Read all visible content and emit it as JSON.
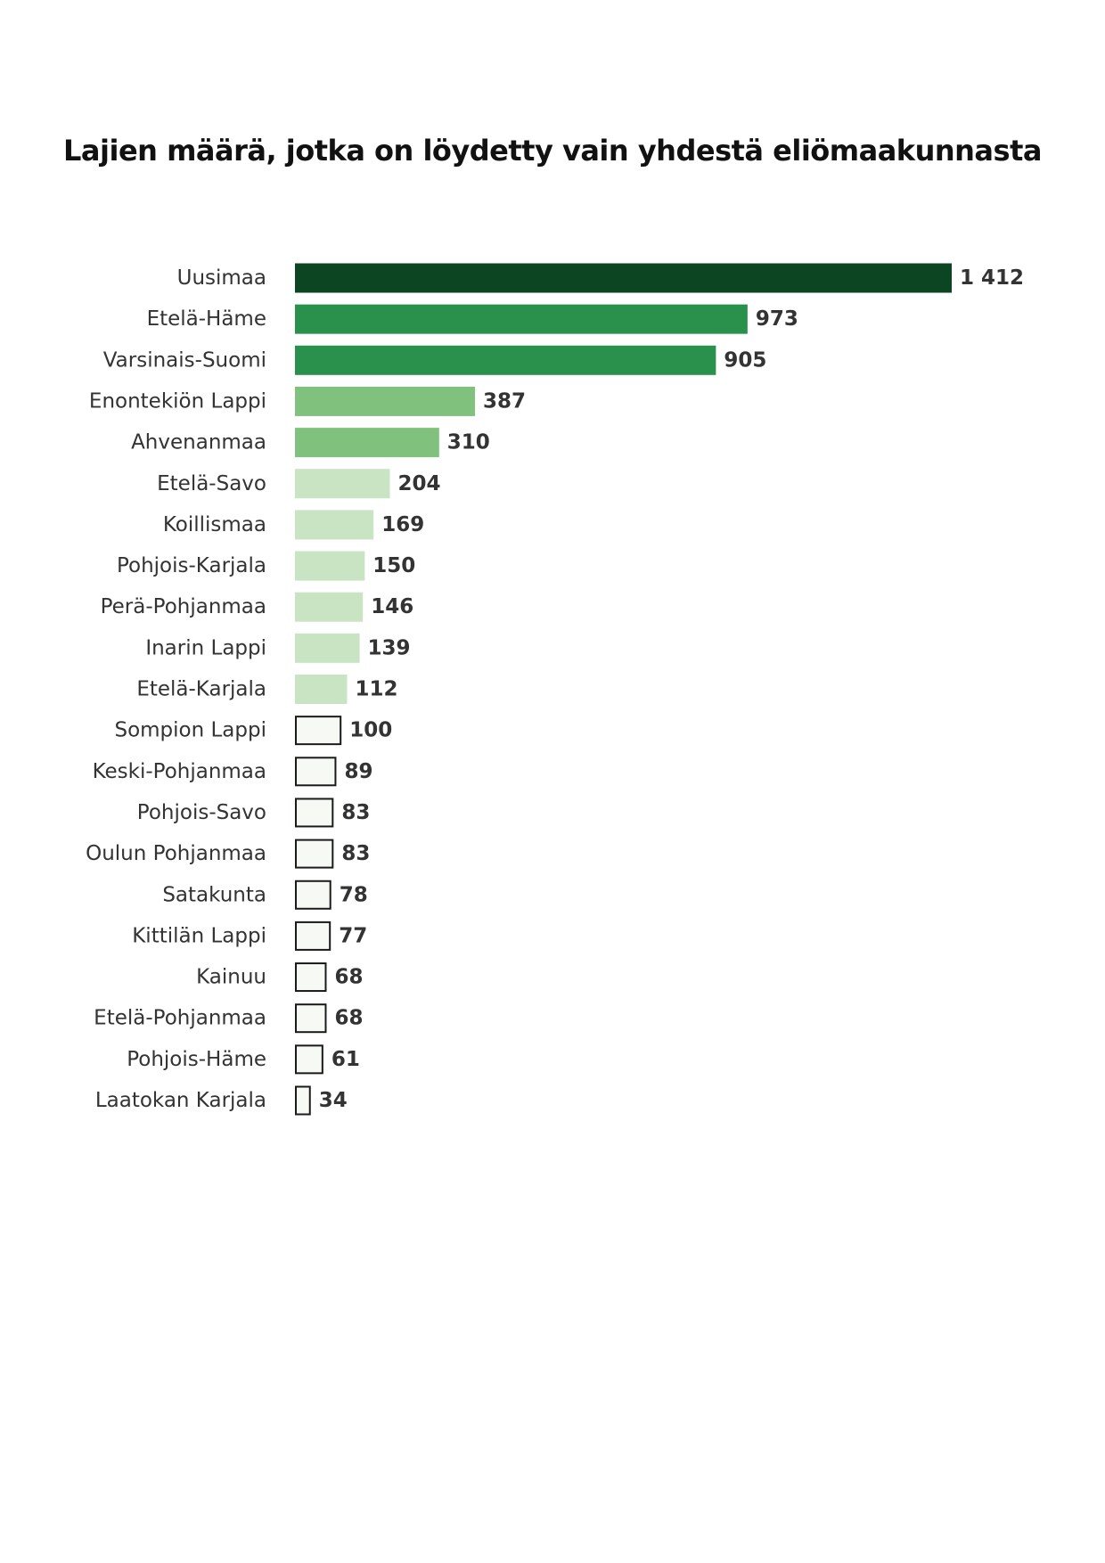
{
  "chart_data": {
    "type": "bar",
    "orientation": "horizontal",
    "title": "Lajien määrä, jotka on löydetty vain yhdestä eliömaakunnasta",
    "categories": [
      "Uusimaa",
      "Etelä-Häme",
      "Varsinais-Suomi",
      "Enontekiön Lappi",
      "Ahvenanmaa",
      "Etelä-Savo",
      "Koillismaa",
      "Pohjois-Karjala",
      "Perä-Pohjanmaa",
      "Inarin Lappi",
      "Etelä-Karjala",
      "Sompion Lappi",
      "Keski-Pohjanmaa",
      "Pohjois-Savo",
      "Oulun Pohjanmaa",
      "Satakunta",
      "Kittilän Lappi",
      "Kainuu",
      "Etelä-Pohjanmaa",
      "Pohjois-Häme",
      "Laatokan Karjala"
    ],
    "values": [
      1412,
      973,
      905,
      387,
      310,
      204,
      169,
      150,
      146,
      139,
      112,
      100,
      89,
      83,
      83,
      78,
      77,
      68,
      68,
      61,
      34
    ],
    "value_labels": [
      "1 412",
      "973",
      "905",
      "387",
      "310",
      "204",
      "169",
      "150",
      "146",
      "139",
      "112",
      "100",
      "89",
      "83",
      "83",
      "78",
      "77",
      "68",
      "68",
      "61",
      "34"
    ],
    "color_scale": [
      {
        "min": 1000,
        "fill": "#0b4521",
        "stroke": "none"
      },
      {
        "min": 500,
        "fill": "#2a914d",
        "stroke": "none"
      },
      {
        "min": 300,
        "fill": "#80c17e",
        "stroke": "none"
      },
      {
        "min": 101,
        "fill": "#c8e4c3",
        "stroke": "none"
      },
      {
        "min": 0,
        "fill": "#f6f9f4",
        "stroke": "#1a1a1a"
      }
    ],
    "xlim": [
      0,
      1412
    ],
    "grid": false,
    "legend": "none"
  }
}
